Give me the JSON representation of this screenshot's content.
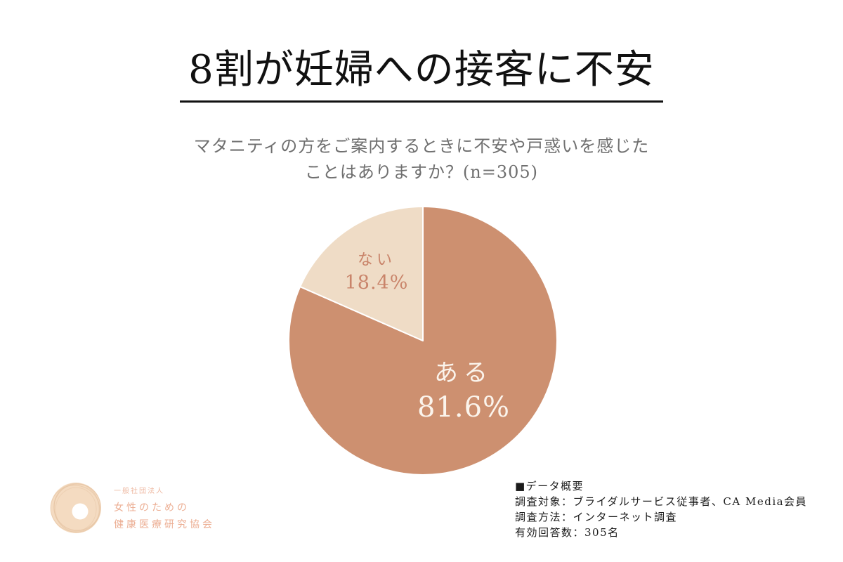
{
  "page": {
    "background": "#ffffff"
  },
  "title": {
    "text": "8割が妊婦への接客に不安"
  },
  "subtitle": {
    "line1": "マタニティの方をご案内するときに不安や戸惑いを感じた",
    "line2": "ことはありますか？(n=305)"
  },
  "chart_data": {
    "type": "pie",
    "title": "マタニティの方をご案内するときに不安や戸惑いを感じたことはありますか？(n=305)",
    "n": 305,
    "start_angle_deg": 0,
    "direction": "clockwise",
    "divider_color": "#ffffff",
    "slices": [
      {
        "label": "ある",
        "value": 81.6,
        "display": "81.6%",
        "color": "#cd9070",
        "label_color": "#fbf4ec"
      },
      {
        "label": "ない",
        "value": 18.4,
        "display": "18.4%",
        "color": "#efdcc6",
        "label_color": "#c9846a"
      }
    ]
  },
  "footer": {
    "summary": {
      "heading": "■データ概要",
      "lines": [
        "調査対象：ブライダルサービス従事者、CA Media会員",
        "調査方法：インターネット調査",
        "有効回答数：305名"
      ]
    },
    "logo": {
      "org_type": "一般社団法人",
      "name_line1": "女性のための",
      "name_line2": "健康医療研究協会",
      "mark_fill": "#f4dbc1",
      "mark_stroke": "#e5c3a2",
      "text_color": "#ecae93"
    }
  }
}
